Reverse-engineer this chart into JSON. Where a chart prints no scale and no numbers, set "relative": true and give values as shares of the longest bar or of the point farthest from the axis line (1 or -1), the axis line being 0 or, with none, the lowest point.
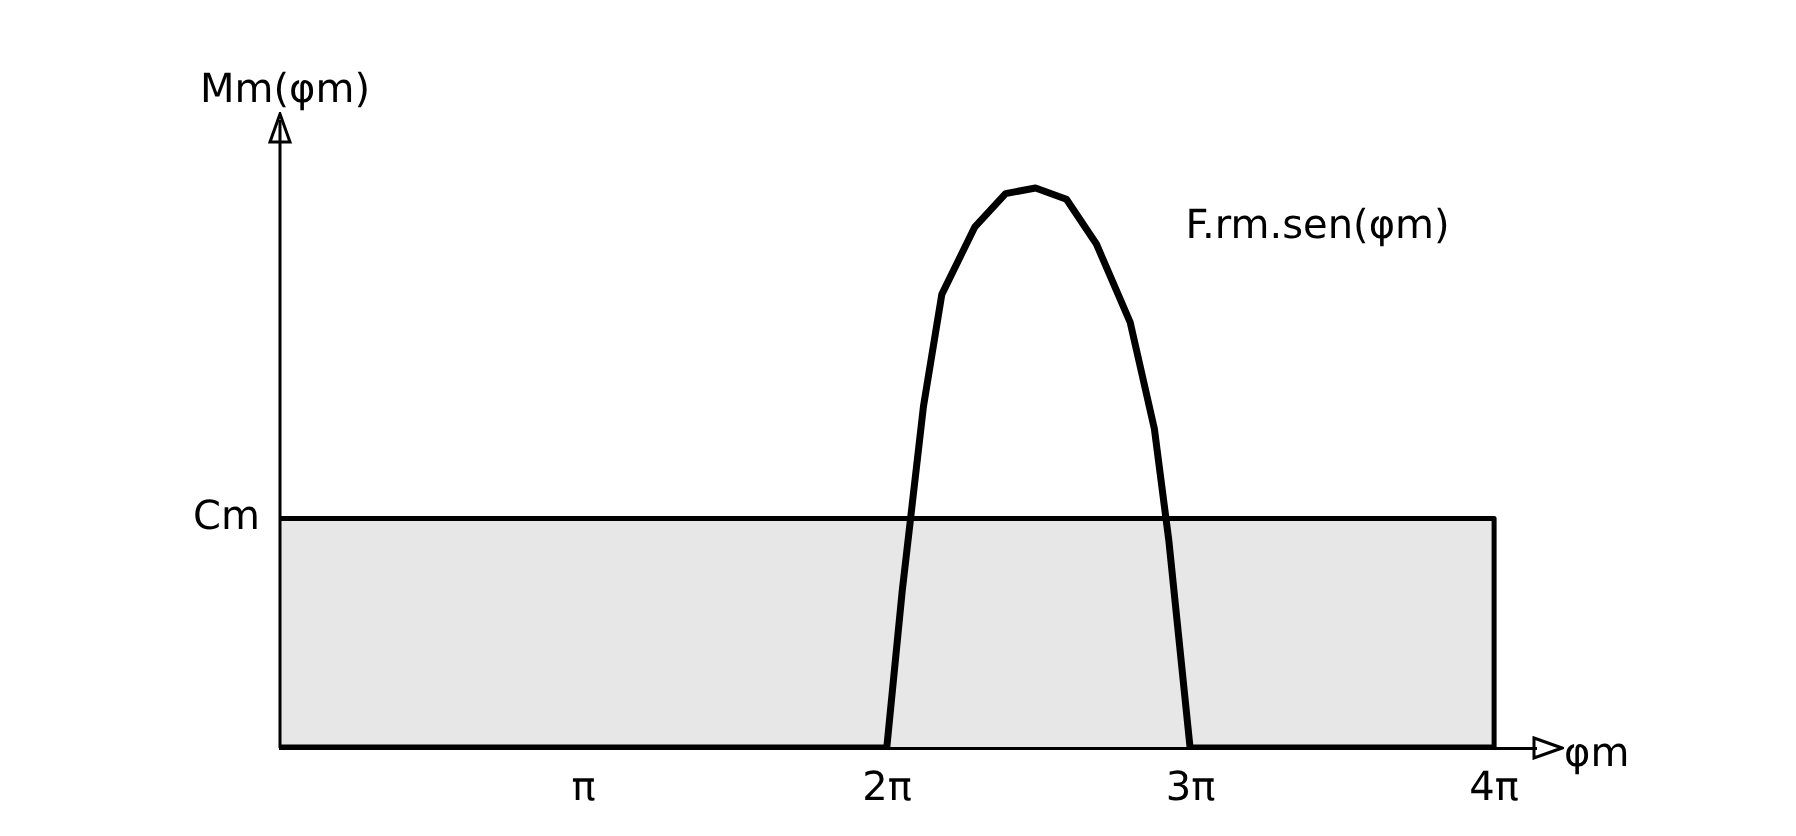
{
  "chart_data": {
    "type": "line",
    "ylabel": "Mm(φm)",
    "xlabel": "φm",
    "relative": true,
    "xlim": [
      0,
      13
    ],
    "xticks": [
      {
        "value": 3.1416,
        "label": "π"
      },
      {
        "value": 6.2832,
        "label": "2π"
      },
      {
        "value": 9.4248,
        "label": "3π"
      },
      {
        "value": 12.5664,
        "label": "4π"
      }
    ],
    "grid": false,
    "marker": "none",
    "series": [
      {
        "name": "Cm",
        "type": "area",
        "color": "#000000",
        "x": [
          0,
          12.5664,
          12.5664
        ],
        "values": [
          0.41,
          0.41,
          0
        ]
      },
      {
        "name": "F.rm.sen(φm)",
        "type": "line",
        "color": "#000000",
        "x": [
          0,
          6.28,
          6.44,
          6.66,
          6.85,
          7.19,
          7.51,
          7.82,
          8.14,
          8.45,
          8.8,
          9.05,
          9.2,
          9.42,
          12.57
        ],
        "values": [
          0,
          0,
          0.28,
          0.61,
          0.81,
          0.93,
          0.99,
          1,
          0.98,
          0.9,
          0.76,
          0.57,
          0.37,
          0,
          0
        ]
      }
    ]
  }
}
